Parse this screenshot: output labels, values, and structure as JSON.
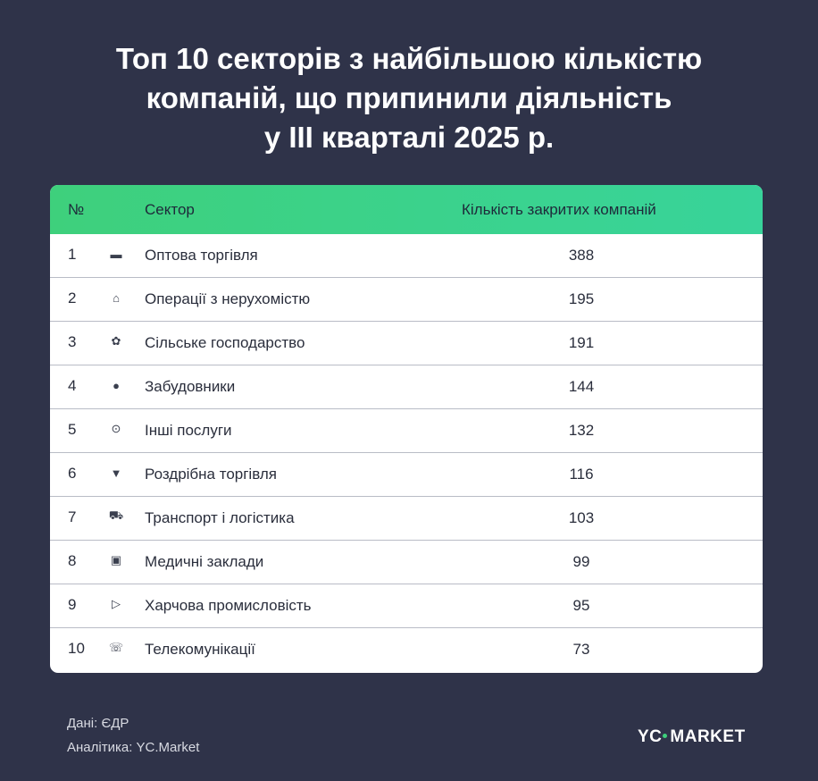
{
  "title_lines": [
    "Топ 10 секторів з найбільшою кількістю",
    "компаній, що припинили діяльність",
    "у ІІІ кварталі 2025 р."
  ],
  "table": {
    "headers": {
      "num": "№",
      "sector": "Сектор",
      "count": "Кількість закритих компаній"
    },
    "rows": [
      {
        "num": "1",
        "icon": "warehouse-icon",
        "glyph": "▬",
        "sector": "Оптова торгівля",
        "count": "388"
      },
      {
        "num": "2",
        "icon": "house-icon",
        "glyph": "⌂",
        "sector": "Операції з нерухомістю",
        "count": "195"
      },
      {
        "num": "3",
        "icon": "plant-icon",
        "glyph": "✿",
        "sector": "Сільське господарство",
        "count": "191"
      },
      {
        "num": "4",
        "icon": "person-icon",
        "glyph": "●",
        "sector": "Забудовники",
        "count": "144"
      },
      {
        "num": "5",
        "icon": "dots-circle-icon",
        "glyph": "⊙",
        "sector": "Інші послуги",
        "count": "132"
      },
      {
        "num": "6",
        "icon": "basket-icon",
        "glyph": "▼",
        "sector": "Роздрібна торгівля",
        "count": "116"
      },
      {
        "num": "7",
        "icon": "car-icon",
        "glyph": "⛟",
        "sector": "Транспорт і логістика",
        "count": "103"
      },
      {
        "num": "8",
        "icon": "medical-icon",
        "glyph": "▣",
        "sector": "Медичні заклади",
        "count": "99"
      },
      {
        "num": "9",
        "icon": "food-icon",
        "glyph": "▷",
        "sector": "Харчова промисловість",
        "count": "95"
      },
      {
        "num": "10",
        "icon": "telecom-icon",
        "glyph": "☏",
        "sector": "Телекомунікації",
        "count": "73"
      }
    ]
  },
  "footer": {
    "source": "Дані: ЄДР",
    "analytics": "Аналітика: YC.Market"
  },
  "logo": {
    "left": "YC",
    "right": "MARKET"
  }
}
